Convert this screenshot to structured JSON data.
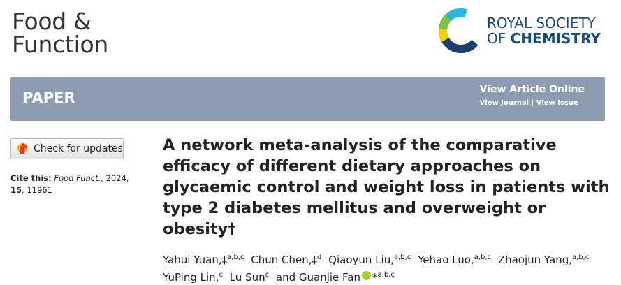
{
  "header": {
    "journal_lines": [
      "Food &",
      "Function"
    ],
    "publisher_lines": [
      "ROYAL SOCIETY",
      "OF"
    ],
    "publisher_bold": "CHEMISTRY"
  },
  "banner": {
    "section": "PAPER",
    "view_online": "View Article Online",
    "view_journal": "View Journal",
    "separator": "|",
    "view_issue": "View Issue"
  },
  "sidebar": {
    "check_updates": "Check for updates",
    "cite_label": "Cite this:",
    "cite_journal": "Food Funct.",
    "cite_year": ", 2024, ",
    "cite_volume": "15",
    "cite_pages": ", 11961"
  },
  "article": {
    "title": "A network meta-analysis of the comparative efficacy of different dietary approaches on glycaemic control and weight loss in patients with type 2 diabetes mellitus and overweight or obesity†",
    "authors": [
      {
        "name": "Yahui Yuan,‡",
        "sup": "a,b,c"
      },
      {
        "name": "Chun Chen,‡",
        "sup": "d"
      },
      {
        "name": "Qiaoyun Liu,",
        "sup": "a,b,c"
      },
      {
        "name": "Yehao Luo,",
        "sup": "a,b,c"
      },
      {
        "name": "Zhaojun Yang,",
        "sup": "a,b,c"
      },
      {
        "name": "YuPing Lin,",
        "sup": "c"
      },
      {
        "name": "Lu Sun",
        "sup": "c"
      },
      {
        "name": "and Guanjie Fan",
        "mark": "*",
        "sup": "a,b,c"
      }
    ]
  }
}
